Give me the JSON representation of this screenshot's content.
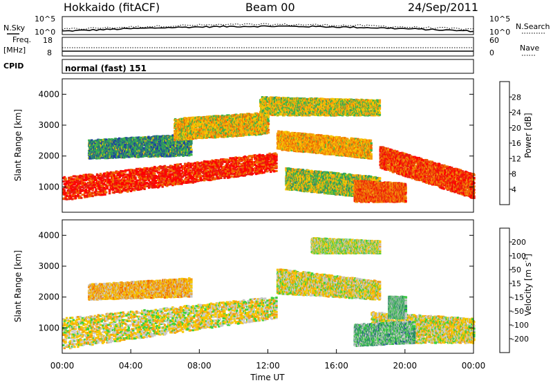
{
  "header": {
    "station": "Hokkaido (fitACF)",
    "beam": "Beam 00",
    "date": "24/Sep/2011"
  },
  "strip_nsky": {
    "left_label": "N.Sky",
    "right_label": "N.Search",
    "left_ticks": [
      "10^5",
      "10^0"
    ],
    "right_ticks": [
      "10^5",
      "10^0"
    ]
  },
  "strip_freq": {
    "left_label_1": "Freq.",
    "left_label_2": "[MHz]",
    "right_label": "Nave",
    "left_ticks": [
      "18",
      "8"
    ],
    "right_ticks": [
      "60",
      "0"
    ]
  },
  "strip_cpid": {
    "label": "CPID",
    "mode_text": "normal (fast) 151"
  },
  "chart_data": [
    {
      "type": "heatmap",
      "title": "Power",
      "ylabel": "Slant Range [km]",
      "xlabel": "",
      "ylim": [
        180,
        4500
      ],
      "y_ticks": [
        "1000",
        "2000",
        "3000",
        "4000"
      ],
      "colorbar_label": "Power [dB]",
      "colorbar_ticks": [
        "28",
        "24",
        "20",
        "16",
        "12",
        "8",
        "4"
      ],
      "colors": [
        "#0000ff",
        "#2040a0",
        "#2c8b6a",
        "#3cb44b",
        "#f7c600",
        "#f39c12",
        "#ef6a00",
        "#e81e10",
        "#ff0000"
      ],
      "echo_bands": [
        {
          "t0": 0.0,
          "t1": 12.5,
          "r0": 550,
          "r1": 1300,
          "r_end0": 1500,
          "r_end1": 2100,
          "level": 0.85
        },
        {
          "t0": 1.5,
          "t1": 7.5,
          "r0": 1900,
          "r1": 2500,
          "r_end0": 2000,
          "r_end1": 2700,
          "level": 0.3
        },
        {
          "t0": 6.5,
          "t1": 12.0,
          "r0": 2500,
          "r1": 3200,
          "r_end0": 2700,
          "r_end1": 3400,
          "level": 0.55
        },
        {
          "t0": 11.5,
          "t1": 18.5,
          "r0": 3300,
          "r1": 3900,
          "r_end0": 3300,
          "r_end1": 3800,
          "level": 0.5
        },
        {
          "t0": 12.5,
          "t1": 18.0,
          "r0": 2200,
          "r1": 2800,
          "r_end0": 1900,
          "r_end1": 2500,
          "level": 0.6
        },
        {
          "t0": 13.0,
          "t1": 18.5,
          "r0": 900,
          "r1": 1600,
          "r_end0": 600,
          "r_end1": 1300,
          "level": 0.45
        },
        {
          "t0": 18.5,
          "t1": 24.0,
          "r0": 1600,
          "r1": 2300,
          "r_end0": 600,
          "r_end1": 1400,
          "level": 0.8
        },
        {
          "t0": 17.0,
          "t1": 20.0,
          "r0": 500,
          "r1": 1200,
          "r_end0": 500,
          "r_end1": 1100,
          "level": 0.75
        }
      ]
    },
    {
      "type": "heatmap",
      "title": "Velocity",
      "ylabel": "Slant Range [km]",
      "xlabel": "Time UT",
      "ylim": [
        180,
        4500
      ],
      "y_ticks": [
        "1000",
        "2000",
        "3000",
        "4000"
      ],
      "x_ticks": [
        "00:00",
        "04:00",
        "08:00",
        "12:00",
        "16:00",
        "20:00",
        "00:00"
      ],
      "colorbar_label_main": "Velocity [m s",
      "colorbar_label_sup": "-1",
      "colorbar_label_end": "]",
      "colorbar_ticks": [
        "200",
        "100",
        "50",
        "15",
        "-15",
        "-50",
        "-100",
        "-200"
      ],
      "colors": [
        "#ff0000",
        "#f06000",
        "#f39c12",
        "#f7c600",
        "#c8c8c8",
        "#3cd23c",
        "#2c8b6a",
        "#2040a0",
        "#0000ff"
      ],
      "echo_bands": [
        {
          "t0": 0.0,
          "t1": 12.5,
          "r0": 300,
          "r1": 1300,
          "r_end0": 1300,
          "r_end1": 2000,
          "level": 0.45
        },
        {
          "t0": 1.5,
          "t1": 7.5,
          "r0": 1900,
          "r1": 2400,
          "r_end0": 2000,
          "r_end1": 2600,
          "level": 0.35
        },
        {
          "t0": 12.5,
          "t1": 18.5,
          "r0": 2100,
          "r1": 2900,
          "r_end0": 1900,
          "r_end1": 2500,
          "level": 0.45
        },
        {
          "t0": 18.0,
          "t1": 24.0,
          "r0": 500,
          "r1": 1500,
          "r_end0": 500,
          "r_end1": 1300,
          "level": 0.45
        },
        {
          "t0": 14.5,
          "t1": 18.5,
          "r0": 3400,
          "r1": 3900,
          "r_end0": 3400,
          "r_end1": 3800,
          "level": 0.5
        },
        {
          "t0": 17.0,
          "t1": 20.5,
          "r0": 400,
          "r1": 1100,
          "r_end0": 500,
          "r_end1": 1200,
          "level": 0.62
        },
        {
          "t0": 19.0,
          "t1": 20.0,
          "r0": 1300,
          "r1": 2000,
          "r_end0": 1300,
          "r_end1": 2000,
          "level": 0.62
        }
      ]
    }
  ]
}
